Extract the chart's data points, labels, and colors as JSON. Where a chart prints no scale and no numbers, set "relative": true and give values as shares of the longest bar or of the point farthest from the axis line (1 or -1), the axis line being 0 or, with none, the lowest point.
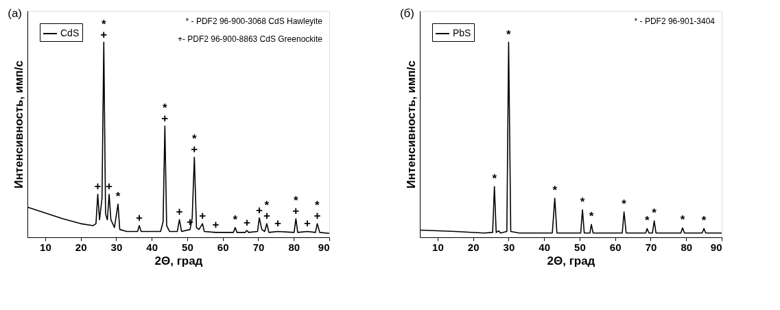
{
  "chart_data": [
    {
      "type": "line",
      "relative": true,
      "xlabel": "2Θ, град",
      "ylabel": "Интенсивность, имп/с",
      "xlim": [
        5,
        90
      ],
      "xticks": [
        10,
        20,
        30,
        40,
        50,
        60,
        70,
        80,
        90
      ],
      "legend": "top left",
      "grid": false,
      "line_style": "solid",
      "annotations": [
        "(a)",
        "* - PDF2 96-900-3068 CdS Hawleyite",
        "+- PDF2 96-900-8863 CdS Greenockite",
        {
          "text": "+",
          "x": 26.5,
          "y": 1.0
        },
        {
          "text": "*",
          "x": 26.5,
          "y": 1.0
        },
        {
          "text": "+",
          "x": 24.8,
          "y": 0.22
        },
        {
          "text": "+",
          "x": 28.0,
          "y": 0.22
        },
        {
          "text": "*",
          "x": 30.5,
          "y": 0.17
        },
        {
          "text": "+",
          "x": 36.5,
          "y": 0.06
        },
        {
          "text": "+",
          "x": 43.7,
          "y": 0.57
        },
        {
          "text": "*",
          "x": 43.7,
          "y": 0.57
        },
        {
          "text": "+",
          "x": 47.8,
          "y": 0.09
        },
        {
          "text": "+",
          "x": 50.8,
          "y": 0.04
        },
        {
          "text": "+",
          "x": 52.0,
          "y": 0.41
        },
        {
          "text": "*",
          "x": 52.0,
          "y": 0.41
        },
        {
          "text": "+",
          "x": 54.3,
          "y": 0.07
        },
        {
          "text": "+",
          "x": 58,
          "y": 0.025
        },
        {
          "text": "*",
          "x": 63.5,
          "y": 0.05
        },
        {
          "text": "+",
          "x": 66.8,
          "y": 0.035
        },
        {
          "text": "+",
          "x": 70.3,
          "y": 0.1
        },
        {
          "text": "+",
          "x": 72.4,
          "y": 0.07
        },
        {
          "text": "*",
          "x": 72.4,
          "y": 0.07
        },
        {
          "text": "+",
          "x": 75.5,
          "y": 0.03
        },
        {
          "text": "+",
          "x": 80.6,
          "y": 0.095
        },
        {
          "text": "*",
          "x": 80.6,
          "y": 0.095
        },
        {
          "text": "+",
          "x": 83.8,
          "y": 0.03
        },
        {
          "text": "+",
          "x": 86.6,
          "y": 0.07
        },
        {
          "text": "*",
          "x": 86.6,
          "y": 0.07
        }
      ],
      "series": [
        {
          "name": "CdS",
          "color": "#000000",
          "x": [
            5,
            10,
            15,
            20,
            23.5,
            24.3,
            24.8,
            25.3,
            26.0,
            26.5,
            27.0,
            27.5,
            28.0,
            28.5,
            29.5,
            30.5,
            31,
            33,
            36,
            36.5,
            37,
            39,
            42.5,
            43.2,
            43.7,
            44.2,
            45,
            47.2,
            47.8,
            48.4,
            50.8,
            51.4,
            52.0,
            52.6,
            53.3,
            54.3,
            54.8,
            58,
            63,
            63.5,
            64,
            66.3,
            66.8,
            67.3,
            69.8,
            70.3,
            71,
            71.8,
            72.4,
            73,
            75.5,
            80.1,
            80.6,
            81.1,
            83.8,
            86.1,
            86.6,
            87.3,
            90
          ],
          "values": [
            0.155,
            0.125,
            0.095,
            0.07,
            0.06,
            0.07,
            0.22,
            0.09,
            0.2,
            1.0,
            0.12,
            0.09,
            0.22,
            0.09,
            0.05,
            0.17,
            0.04,
            0.03,
            0.03,
            0.06,
            0.03,
            0.03,
            0.03,
            0.08,
            0.57,
            0.06,
            0.03,
            0.03,
            0.09,
            0.03,
            0.04,
            0.1,
            0.41,
            0.05,
            0.04,
            0.07,
            0.03,
            0.025,
            0.025,
            0.05,
            0.025,
            0.025,
            0.035,
            0.025,
            0.03,
            0.1,
            0.04,
            0.03,
            0.07,
            0.025,
            0.03,
            0.025,
            0.095,
            0.025,
            0.03,
            0.025,
            0.07,
            0.025,
            0.02
          ]
        }
      ]
    },
    {
      "type": "line",
      "relative": true,
      "xlabel": "2Θ, град",
      "ylabel": "Интенсивность, имп/с",
      "xlim": [
        5,
        90
      ],
      "xticks": [
        10,
        20,
        30,
        40,
        50,
        60,
        70,
        80,
        90
      ],
      "legend": "top left",
      "grid": false,
      "line_style": "solid",
      "annotations": [
        "(б)",
        "* - PDF2 96-901-3404",
        {
          "text": "*",
          "x": 26,
          "y": 0.26
        },
        {
          "text": "*",
          "x": 30,
          "y": 1.0
        },
        {
          "text": "*",
          "x": 43,
          "y": 0.2
        },
        {
          "text": "*",
          "x": 50.8,
          "y": 0.14
        },
        {
          "text": "*",
          "x": 53.3,
          "y": 0.066
        },
        {
          "text": "*",
          "x": 62.5,
          "y": 0.13
        },
        {
          "text": "*",
          "x": 69,
          "y": 0.045
        },
        {
          "text": "*",
          "x": 71,
          "y": 0.084
        },
        {
          "text": "*",
          "x": 79,
          "y": 0.048
        },
        {
          "text": "*",
          "x": 85,
          "y": 0.045
        }
      ],
      "series": [
        {
          "name": "PbS",
          "color": "#000000",
          "x": [
            5,
            15,
            23,
            25.5,
            26,
            26.5,
            27.2,
            27.7,
            29.5,
            30,
            30.6,
            33,
            42.3,
            43,
            43.6,
            50.3,
            50.8,
            51.3,
            52.9,
            53.3,
            53.8,
            62,
            62.5,
            63.1,
            68.6,
            69,
            69.5,
            70.5,
            71,
            71.5,
            78.5,
            79,
            79.5,
            84.5,
            85,
            85.5,
            90
          ],
          "values": [
            0.037,
            0.03,
            0.022,
            0.025,
            0.26,
            0.025,
            0.033,
            0.022,
            0.03,
            1.0,
            0.03,
            0.022,
            0.022,
            0.2,
            0.022,
            0.022,
            0.14,
            0.022,
            0.022,
            0.066,
            0.022,
            0.022,
            0.13,
            0.022,
            0.022,
            0.045,
            0.022,
            0.022,
            0.084,
            0.022,
            0.022,
            0.048,
            0.022,
            0.022,
            0.045,
            0.022,
            0.022
          ]
        }
      ]
    }
  ]
}
